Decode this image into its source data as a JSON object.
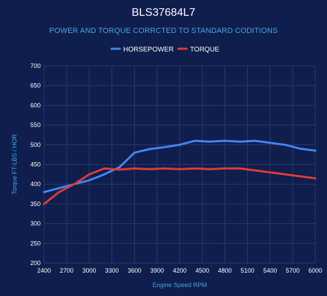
{
  "colors": {
    "background": "#0f1e4d",
    "grid": "#2b3a68",
    "axis_text": "#ffffff",
    "axis_label": "#41a7ea",
    "horsepower": "#4287f5",
    "torque": "#e03c33"
  },
  "chart_data": {
    "type": "line",
    "title": "BLS37684L7",
    "subtitle": "POWER AND TORQUE CORRCTED TO STANDARD CODITIONS",
    "xlabel": "Engine Speed RPM",
    "ylabel": "Torque FT-LBS / HOR",
    "legend_position": "top-center",
    "grid": true,
    "x_ticks": [
      "2400",
      "2700",
      "3000",
      "3300",
      "3600",
      "3900",
      "4200",
      "4500",
      "4800",
      "5100",
      "5400",
      "5700",
      "6000"
    ],
    "y_ticks": [
      "200",
      "250",
      "300",
      "350",
      "400",
      "450",
      "500",
      "550",
      "600",
      "650",
      "700"
    ],
    "xlim": [
      2400,
      6000
    ],
    "ylim": [
      200,
      700
    ],
    "x": [
      2400,
      2600,
      2800,
      3000,
      3200,
      3400,
      3600,
      3800,
      4000,
      4200,
      4400,
      4600,
      4800,
      5000,
      5200,
      5400,
      5600,
      5800,
      6000
    ],
    "series": [
      {
        "name": "HORSEPOWER",
        "values": [
          380,
          390,
          400,
          410,
          425,
          443,
          480,
          489,
          494,
          500,
          510,
          508,
          510,
          508,
          510,
          505,
          500,
          490,
          485
        ]
      },
      {
        "name": "TORQUE",
        "values": [
          350,
          380,
          400,
          425,
          440,
          437,
          440,
          438,
          440,
          438,
          440,
          438,
          440,
          440,
          435,
          430,
          425,
          420,
          415
        ]
      }
    ]
  }
}
